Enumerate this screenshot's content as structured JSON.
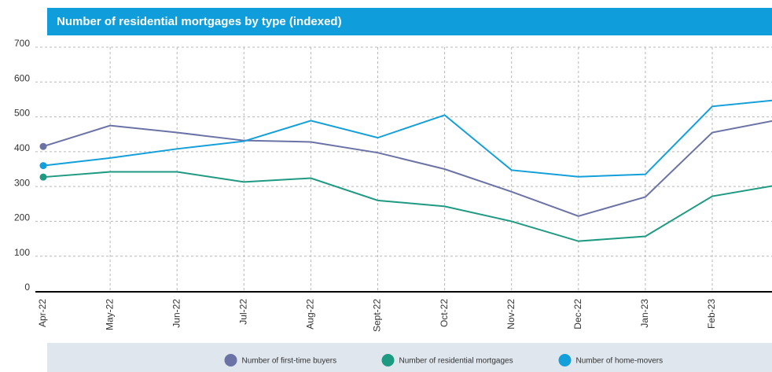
{
  "chart_data": {
    "type": "line",
    "title": "Number of residential mortgages by type (indexed)",
    "categories": [
      "Apr-22",
      "May-22",
      "Jun-22",
      "Jul-22",
      "Aug-22",
      "Sept-22",
      "Oct-22",
      "Nov-22",
      "Dec-22",
      "Jan-23",
      "Feb-23",
      null
    ],
    "series": [
      {
        "name": "Number of first-time buyers",
        "color": "#6b73a6",
        "values": [
          415,
          475,
          455,
          432,
          428,
          397,
          350,
          285,
          215,
          270,
          455,
          492
        ]
      },
      {
        "name": "Number of residential mortgages",
        "color": "#1f9a82",
        "values": [
          327,
          342,
          342,
          313,
          324,
          260,
          243,
          200,
          143,
          157,
          272,
          305
        ]
      },
      {
        "name": "Number of home-movers",
        "color": "#139fda",
        "values": [
          360,
          382,
          408,
          430,
          489,
          440,
          505,
          347,
          328,
          335,
          530,
          549
        ]
      }
    ],
    "ylim": [
      0,
      700
    ],
    "yticks": [
      0,
      100,
      200,
      300,
      400,
      500,
      600,
      700
    ],
    "grid": true,
    "legend": "bottom"
  }
}
